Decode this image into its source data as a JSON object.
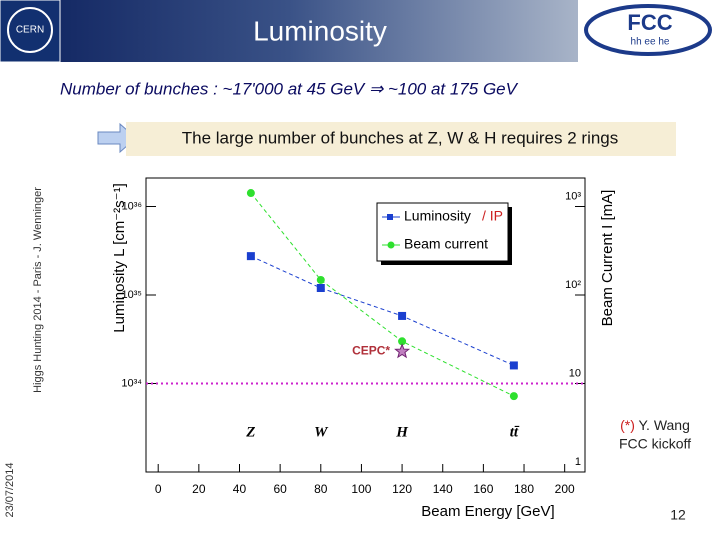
{
  "title": "Luminosity",
  "logos": {
    "left": "CERN",
    "right": "FCC",
    "right_sub": "hh ee he"
  },
  "subtitle": "Number of  bunches : ~17'000 at 45 GeV ⇒ ~100 at 175 GeV",
  "banner": "The large number of bunches at Z, W & H requires 2 rings",
  "side_text": "Higgs Hunting 2014 - Paris - J. Wenninger",
  "date": "23/07/2014",
  "note": {
    "marker": "(*)",
    "text": " Y. Wang",
    "text2": "FCC kickoff"
  },
  "page_number": "12",
  "chart_data": {
    "type": "line",
    "xlabel": "Beam Energy [GeV]",
    "ylabel": "Luminosity L [cm⁻²s⁻¹]",
    "y2label": "Beam Current I [mA]",
    "xlim": [
      -6,
      210
    ],
    "xticks": [
      0,
      20,
      40,
      60,
      80,
      100,
      120,
      140,
      160,
      180,
      200
    ],
    "log_y": true,
    "ylim": [
      1e+33,
      2.1e+36
    ],
    "yticks": [
      {
        "value": 1e+34,
        "label": "10³⁴"
      },
      {
        "value": 1e+35,
        "label": "10³⁵"
      },
      {
        "value": 1e+36,
        "label": "10³⁶"
      }
    ],
    "y2lim": [
      1,
      2100
    ],
    "y2ticks": [
      1,
      10,
      {
        "value": 100,
        "label": "10²"
      },
      {
        "value": 1000,
        "label": "10³"
      }
    ],
    "series": [
      {
        "name": "Luminosity",
        "color": "#1a3fcf",
        "marker": "square",
        "x": [
          45.6,
          80,
          120,
          175
        ],
        "values": [
          2.75e+35,
          1.2e+35,
          5.8e+34,
          1.6e+34
        ]
      },
      {
        "name": "Beam current",
        "color": "#2ee02e",
        "marker": "circle",
        "axis": "y2",
        "x": [
          45.6,
          80,
          120,
          175
        ],
        "values": [
          1420,
          148,
          30,
          7.2
        ]
      }
    ],
    "legend_note": "/ IP",
    "process_labels": [
      "Z",
      "W",
      "H",
      "tt̄"
    ],
    "reference_line": {
      "value": 1e+34,
      "color": "#cc22cc"
    },
    "point_annotation": {
      "text": "CEPC*",
      "x": 120,
      "y": 2.3e+34,
      "color": "#b0303a"
    }
  }
}
